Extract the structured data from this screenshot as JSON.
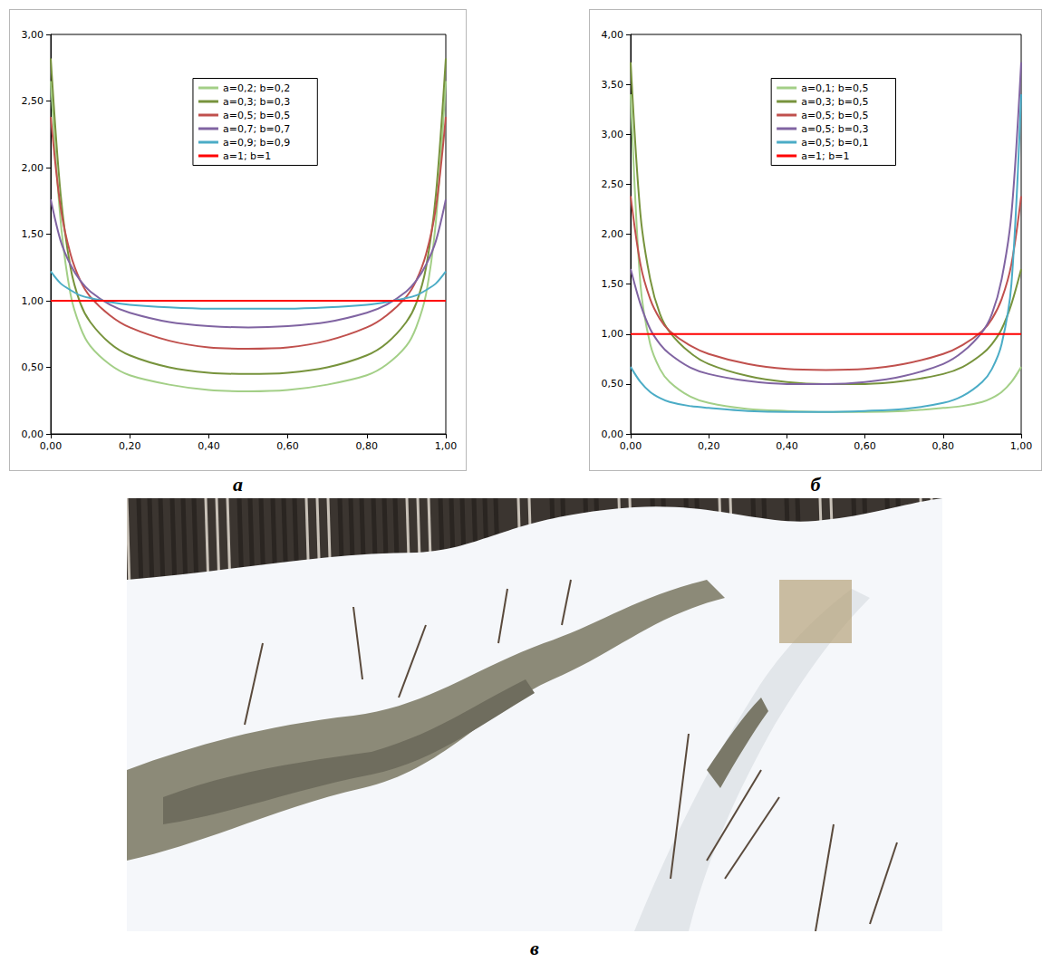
{
  "chart_data": [
    {
      "type": "line",
      "title": "а",
      "grid": false,
      "legend": "top",
      "x": [
        0,
        0.025,
        0.05,
        0.075,
        0.1,
        0.15,
        0.2,
        0.3,
        0.4,
        0.5,
        0.6,
        0.7,
        0.8,
        0.85,
        0.9,
        0.925,
        0.95,
        0.975,
        1
      ],
      "xlim": [
        0,
        1
      ],
      "xticks": [
        {
          "value": 0,
          "label": "0,00"
        },
        {
          "value": 0.2,
          "label": "0,20"
        },
        {
          "value": 0.4,
          "label": "0,40"
        },
        {
          "value": 0.6,
          "label": "0,60"
        },
        {
          "value": 0.8,
          "label": "0,80"
        },
        {
          "value": 1,
          "label": "1,00"
        }
      ],
      "ylim": [
        0,
        3
      ],
      "yticks": [
        {
          "value": 0,
          "label": "0,00"
        },
        {
          "value": 0.5,
          "label": "0,50"
        },
        {
          "value": 1,
          "label": "1,00"
        },
        {
          "value": 1.5,
          "label": "1,50"
        },
        {
          "value": 2,
          "label": "2,00"
        },
        {
          "value": 2.5,
          "label": "2,50"
        },
        {
          "value": 3,
          "label": "3,00"
        }
      ],
      "series": [
        {
          "name": "a=0,2; b=0,2",
          "color": "#a3cf87",
          "values": [
            2.65,
            1.6,
            1.05,
            0.8,
            0.66,
            0.52,
            0.44,
            0.37,
            0.33,
            0.32,
            0.33,
            0.37,
            0.44,
            0.52,
            0.66,
            0.8,
            1.05,
            1.6,
            2.65
          ]
        },
        {
          "name": "a=0,3; b=0,3",
          "color": "#77933c",
          "values": [
            2.82,
            1.8,
            1.25,
            0.98,
            0.84,
            0.68,
            0.59,
            0.5,
            0.46,
            0.45,
            0.46,
            0.5,
            0.59,
            0.68,
            0.84,
            0.98,
            1.25,
            1.8,
            2.82
          ]
        },
        {
          "name": "a=0,5; b=0,5",
          "color": "#c0504d",
          "values": [
            2.38,
            1.7,
            1.35,
            1.15,
            1.03,
            0.89,
            0.8,
            0.7,
            0.65,
            0.64,
            0.65,
            0.7,
            0.8,
            0.89,
            1.03,
            1.15,
            1.35,
            1.7,
            2.38
          ]
        },
        {
          "name": "a=0,7; b=0,7",
          "color": "#8064a2",
          "values": [
            1.76,
            1.45,
            1.27,
            1.15,
            1.07,
            0.97,
            0.91,
            0.84,
            0.81,
            0.8,
            0.81,
            0.84,
            0.91,
            0.97,
            1.07,
            1.15,
            1.27,
            1.45,
            1.76
          ]
        },
        {
          "name": "a=0,9; b=0,9",
          "color": "#4bacc6",
          "values": [
            1.22,
            1.13,
            1.08,
            1.04,
            1.02,
            0.99,
            0.97,
            0.95,
            0.94,
            0.94,
            0.94,
            0.95,
            0.97,
            0.99,
            1.02,
            1.04,
            1.08,
            1.13,
            1.22
          ]
        },
        {
          "name": "a=1; b=1",
          "color": "#ff0000",
          "values": [
            1,
            1,
            1,
            1,
            1,
            1,
            1,
            1,
            1,
            1,
            1,
            1,
            1,
            1,
            1,
            1,
            1,
            1,
            1
          ]
        }
      ]
    },
    {
      "type": "line",
      "title": "б",
      "grid": false,
      "legend": "top",
      "x": [
        0,
        0.025,
        0.05,
        0.075,
        0.1,
        0.15,
        0.2,
        0.3,
        0.4,
        0.5,
        0.6,
        0.7,
        0.8,
        0.85,
        0.9,
        0.925,
        0.95,
        0.975,
        1
      ],
      "xlim": [
        0,
        1
      ],
      "xticks": [
        {
          "value": 0,
          "label": "0,00"
        },
        {
          "value": 0.2,
          "label": "0,20"
        },
        {
          "value": 0.4,
          "label": "0,40"
        },
        {
          "value": 0.6,
          "label": "0,60"
        },
        {
          "value": 0.8,
          "label": "0,80"
        },
        {
          "value": 1,
          "label": "1,00"
        }
      ],
      "ylim": [
        0,
        4
      ],
      "yticks": [
        {
          "value": 0,
          "label": "0,00"
        },
        {
          "value": 0.5,
          "label": "0,50"
        },
        {
          "value": 1,
          "label": "1,00"
        },
        {
          "value": 1.5,
          "label": "1,50"
        },
        {
          "value": 2,
          "label": "2,00"
        },
        {
          "value": 2.5,
          "label": "2,50"
        },
        {
          "value": 3,
          "label": "3,00"
        },
        {
          "value": 3.5,
          "label": "3,50"
        },
        {
          "value": 4,
          "label": "4,00"
        }
      ],
      "series": [
        {
          "name": "a=0,1; b=0,5",
          "color": "#a3cf87",
          "values": [
            3.4,
            1.5,
            0.9,
            0.65,
            0.52,
            0.38,
            0.31,
            0.25,
            0.23,
            0.22,
            0.22,
            0.23,
            0.26,
            0.28,
            0.32,
            0.36,
            0.42,
            0.52,
            0.67
          ]
        },
        {
          "name": "a=0,3; b=0,5",
          "color": "#77933c",
          "values": [
            3.72,
            2.2,
            1.55,
            1.2,
            1.02,
            0.82,
            0.7,
            0.58,
            0.52,
            0.5,
            0.5,
            0.53,
            0.6,
            0.67,
            0.8,
            0.9,
            1.05,
            1.3,
            1.65
          ]
        },
        {
          "name": "a=0,5; b=0,5",
          "color": "#c0504d",
          "values": [
            2.38,
            1.7,
            1.35,
            1.15,
            1.03,
            0.89,
            0.8,
            0.7,
            0.65,
            0.64,
            0.65,
            0.7,
            0.8,
            0.89,
            1.03,
            1.15,
            1.35,
            1.7,
            2.38
          ]
        },
        {
          "name": "a=0,5; b=0,3",
          "color": "#8064a2",
          "values": [
            1.65,
            1.3,
            1.05,
            0.9,
            0.8,
            0.67,
            0.6,
            0.53,
            0.5,
            0.5,
            0.52,
            0.58,
            0.7,
            0.82,
            1.02,
            1.2,
            1.55,
            2.2,
            3.72
          ]
        },
        {
          "name": "a=0,5; b=0,1",
          "color": "#4bacc6",
          "values": [
            0.67,
            0.52,
            0.42,
            0.36,
            0.32,
            0.28,
            0.26,
            0.23,
            0.22,
            0.22,
            0.23,
            0.25,
            0.31,
            0.38,
            0.52,
            0.65,
            0.9,
            1.5,
            3.4
          ]
        },
        {
          "name": "a=1; b=1",
          "color": "#ff0000",
          "values": [
            1,
            1,
            1,
            1,
            1,
            1,
            1,
            1,
            1,
            1,
            1,
            1,
            1,
            1,
            1,
            1,
            1,
            1,
            1
          ]
        }
      ]
    }
  ],
  "photo": {
    "label": "в"
  }
}
